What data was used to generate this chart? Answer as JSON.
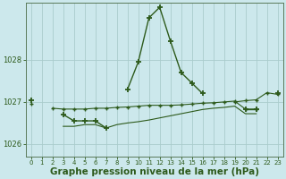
{
  "background_color": "#cce8ec",
  "grid_color": "#aacccc",
  "line_color": "#2d5a1b",
  "xlabel": "Graphe pression niveau de la mer (hPa)",
  "xlabel_fontsize": 7.5,
  "ylabel_values": [
    1026,
    1027,
    1028
  ],
  "xlim": [
    -0.5,
    23.5
  ],
  "ylim": [
    1025.7,
    1029.35
  ],
  "hours": [
    0,
    1,
    2,
    3,
    4,
    5,
    6,
    7,
    8,
    9,
    10,
    11,
    12,
    13,
    14,
    15,
    16,
    17,
    18,
    19,
    20,
    21,
    22,
    23
  ],
  "series1": [
    1027.05,
    null,
    null,
    1026.7,
    1026.55,
    1026.55,
    1026.55,
    1026.38,
    null,
    1027.3,
    1027.95,
    1029.0,
    1029.25,
    1028.45,
    1027.7,
    1027.45,
    1027.2,
    null,
    null,
    null,
    1026.82,
    1026.82,
    null,
    1027.2
  ],
  "series2": [
    null,
    null,
    1026.85,
    1026.83,
    1026.83,
    1026.83,
    1026.85,
    1026.85,
    1026.87,
    1026.88,
    1026.9,
    1026.92,
    1026.92,
    1026.92,
    1026.93,
    1026.95,
    1026.97,
    1026.98,
    1027.0,
    1027.02,
    1026.83,
    1026.83,
    null,
    null
  ],
  "series3": [
    null,
    null,
    null,
    1026.42,
    1026.42,
    1026.46,
    1026.46,
    1026.38,
    1026.46,
    1026.5,
    1026.53,
    1026.57,
    1026.62,
    1026.67,
    1026.72,
    1026.77,
    1026.82,
    1026.85,
    1026.87,
    1026.9,
    1026.72,
    1026.72,
    null,
    null
  ],
  "series4": [
    1026.95,
    null,
    null,
    null,
    null,
    null,
    null,
    null,
    null,
    null,
    null,
    null,
    null,
    null,
    null,
    null,
    null,
    null,
    null,
    1027.0,
    1027.03,
    1027.05,
    1027.22,
    1027.18
  ]
}
